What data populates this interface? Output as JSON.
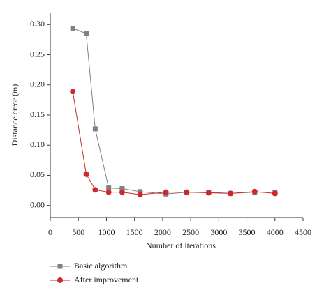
{
  "chart_data": {
    "type": "line",
    "x_label": "Number of iterations",
    "y_label": "Distance error (m)",
    "x": [
      400,
      640,
      800,
      1040,
      1280,
      1600,
      2060,
      2430,
      2820,
      3210,
      3640,
      4000
    ],
    "series": [
      {
        "name": "Basic algorithm",
        "color": "#808080",
        "marker": "square",
        "values": [
          0.294,
          0.285,
          0.127,
          0.029,
          0.028,
          0.023,
          0.019,
          0.022,
          0.022,
          0.02,
          0.022,
          0.022
        ]
      },
      {
        "name": "After improvement",
        "color": "#cc2a2a",
        "marker": "circle",
        "values": [
          0.189,
          0.052,
          0.026,
          0.022,
          0.022,
          0.018,
          0.022,
          0.022,
          0.021,
          0.02,
          0.023,
          0.02
        ]
      }
    ],
    "xlim": [
      0,
      4500
    ],
    "xticks": [
      0,
      500,
      1000,
      1500,
      2000,
      2500,
      3000,
      3500,
      4000,
      4500
    ],
    "ylim": [
      -0.02,
      0.32
    ],
    "yticks": [
      {
        "value": 0,
        "label": "0.00"
      },
      0.05,
      {
        "value": 0.1,
        "label": "0.10"
      },
      0.15,
      {
        "value": 0.2,
        "label": "0.20"
      },
      0.25,
      {
        "value": 0.3,
        "label": "0.30"
      }
    ],
    "grid": false
  }
}
